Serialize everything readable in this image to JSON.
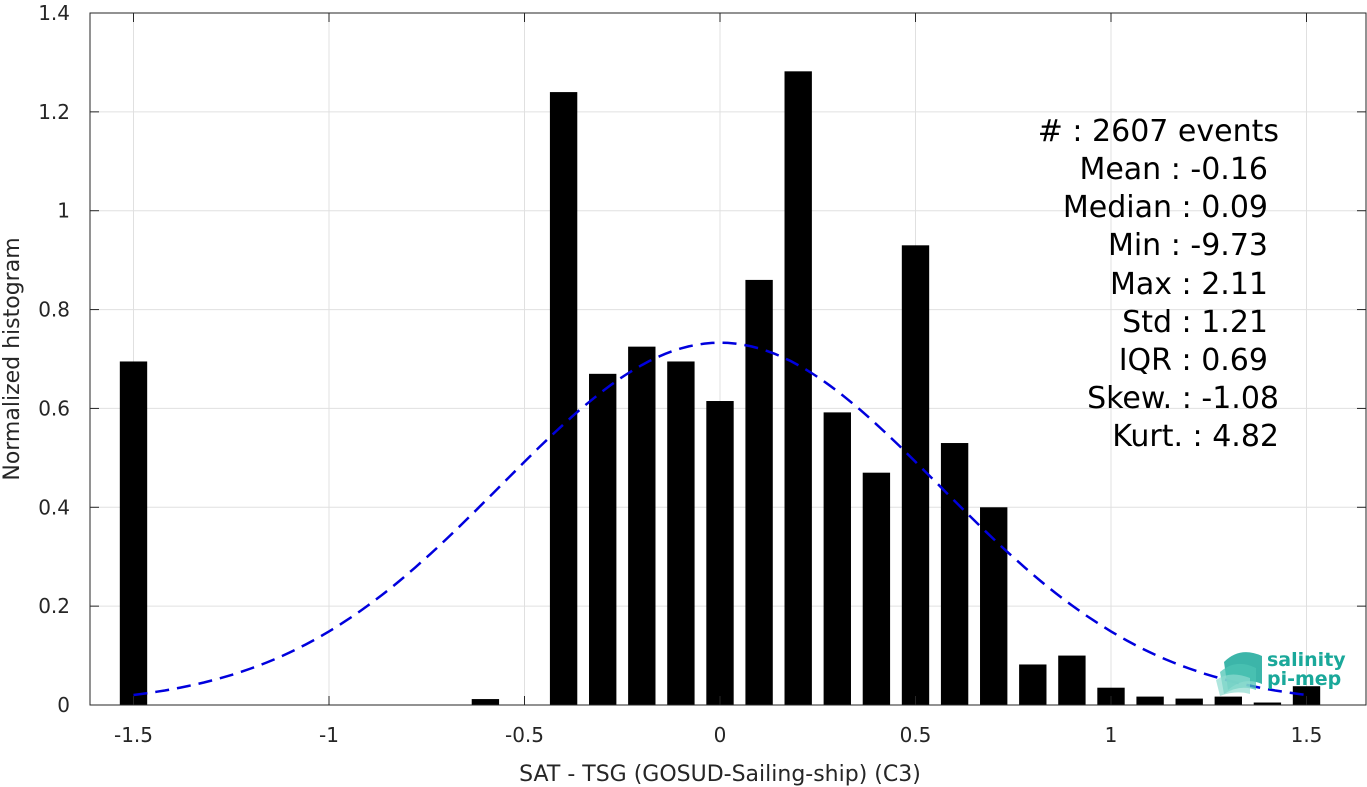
{
  "chart_data": {
    "type": "bar",
    "title": "",
    "xlabel": "SAT - TSG (GOSUD-Sailing-ship) (C3)",
    "ylabel": "Normalized histogram",
    "xlim": [
      -1.6,
      1.6
    ],
    "ylim": [
      0,
      1.4
    ],
    "grid": true,
    "x_ticks": [
      -1.5,
      -1,
      -0.5,
      0,
      0.5,
      1,
      1.5
    ],
    "x_tick_labels": [
      "-1.5",
      "-1",
      "-0.5",
      "0",
      "0.5",
      "1",
      "1.5"
    ],
    "y_ticks": [
      0,
      0.2,
      0.4,
      0.6,
      0.8,
      1,
      1.2,
      1.4
    ],
    "y_tick_labels": [
      "0",
      "0.2",
      "0.4",
      "0.6",
      "0.8",
      "1",
      "1.2",
      "1.4"
    ],
    "bar_width": 0.07,
    "bar_color": "#000000",
    "bars": [
      {
        "x": -1.5,
        "value": 0.695
      },
      {
        "x": -0.6,
        "value": 0.012
      },
      {
        "x": -0.4,
        "value": 1.24
      },
      {
        "x": -0.3,
        "value": 0.67
      },
      {
        "x": -0.2,
        "value": 0.725
      },
      {
        "x": -0.1,
        "value": 0.695
      },
      {
        "x": 0.0,
        "value": 0.615
      },
      {
        "x": 0.1,
        "value": 0.86
      },
      {
        "x": 0.2,
        "value": 1.282
      },
      {
        "x": 0.3,
        "value": 0.592
      },
      {
        "x": 0.4,
        "value": 0.47
      },
      {
        "x": 0.5,
        "value": 0.93
      },
      {
        "x": 0.6,
        "value": 0.53
      },
      {
        "x": 0.7,
        "value": 0.4
      },
      {
        "x": 0.8,
        "value": 0.082
      },
      {
        "x": 0.9,
        "value": 0.1
      },
      {
        "x": 1.0,
        "value": 0.035
      },
      {
        "x": 1.1,
        "value": 0.017
      },
      {
        "x": 1.2,
        "value": 0.013
      },
      {
        "x": 1.3,
        "value": 0.017
      },
      {
        "x": 1.4,
        "value": 0.005
      },
      {
        "x": 1.5,
        "value": 0.038
      }
    ],
    "fit_curve": {
      "type": "gaussian",
      "style": "dashed",
      "color": "#0000dd",
      "x_range": [
        -1.5,
        1.5
      ],
      "peak": 0.733,
      "center": 0.0,
      "sigma": 0.56
    },
    "stats_lines": [
      "#  : 2607 events",
      "Mean : -0.16",
      "Median : 0.09",
      "Min : -9.73",
      "Max : 2.11",
      "Std : 1.21",
      "IQR : 0.69",
      "Skew. : -1.08",
      "Kurt. : 4.82"
    ]
  },
  "logo": {
    "line1": "salinity",
    "line2": "pi-mep",
    "color": "#1aa89a"
  }
}
